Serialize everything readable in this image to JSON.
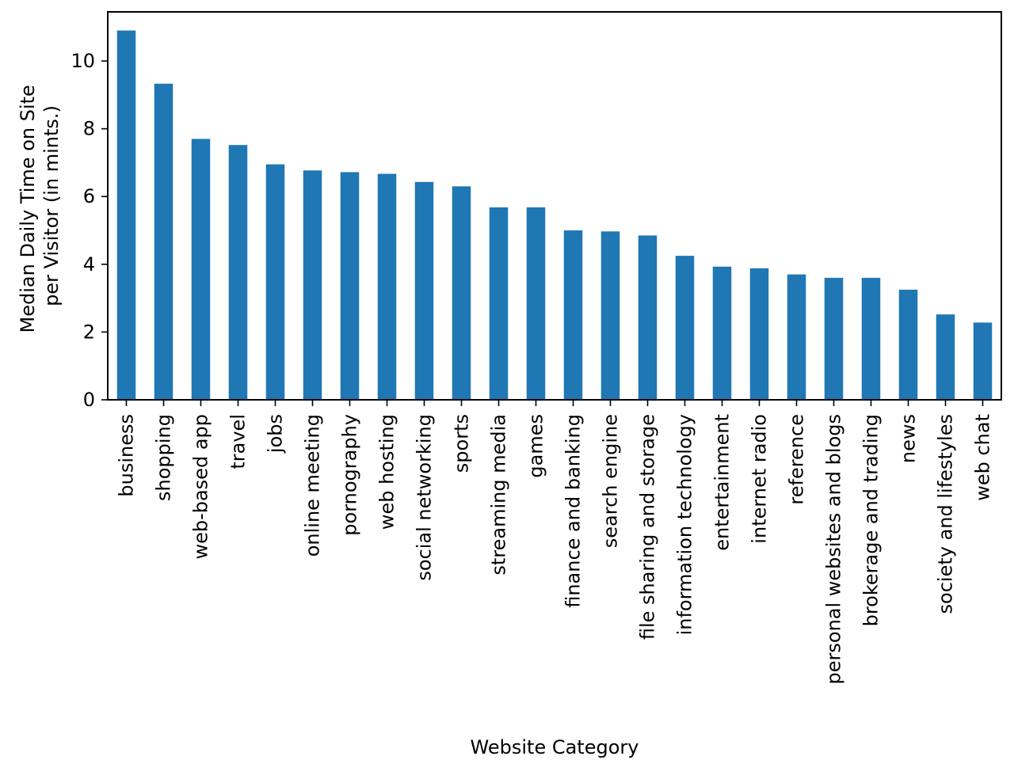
{
  "chart_data": {
    "type": "bar",
    "title": "",
    "xlabel": "Website Category",
    "ylabel_lines": [
      "Median Daily Time on Site",
      "per Visitor (in mints.)"
    ],
    "ylim": [
      0,
      11.45
    ],
    "yticks": [
      0,
      2,
      4,
      6,
      8,
      10
    ],
    "grid": false,
    "bar_color": "#1f77b4",
    "categories": [
      "business",
      "shopping",
      "web-based app",
      "travel",
      "jobs",
      "online meeting",
      "pornography",
      "web hosting",
      "social networking",
      "sports",
      "streaming media",
      "games",
      "finance and banking",
      "search engine",
      "file sharing and storage",
      "information technology",
      "entertainment",
      "internet radio",
      "reference",
      "personal websites and blogs",
      "brokerage and trading",
      "news",
      "society and lifestyles",
      "web chat"
    ],
    "values": [
      10.9,
      9.33,
      7.7,
      7.52,
      6.95,
      6.77,
      6.72,
      6.67,
      6.43,
      6.3,
      5.68,
      5.68,
      5.0,
      4.97,
      4.85,
      4.25,
      3.93,
      3.88,
      3.7,
      3.6,
      3.6,
      3.25,
      2.52,
      2.28
    ]
  }
}
